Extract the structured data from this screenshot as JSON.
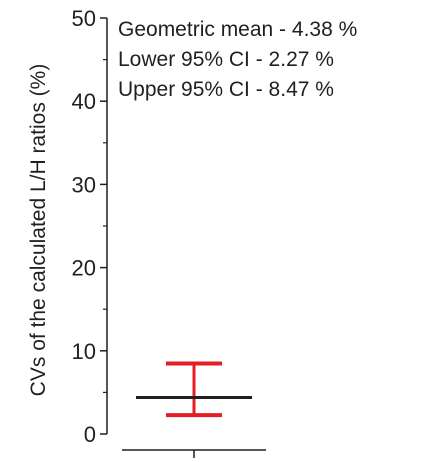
{
  "chart_data": {
    "type": "errorbar",
    "ylabel": "CVs of the calculated L/H ratios (%)",
    "ylim": [
      0,
      50
    ],
    "yticks": [
      0,
      10,
      20,
      30,
      40,
      50
    ],
    "yminor_step": 5,
    "grid": false,
    "legend": "none",
    "points": [
      {
        "center": 4.38,
        "lower": 2.27,
        "upper": 8.47
      }
    ],
    "annotations": [
      "Geometric mean - 4.38 %",
      "Lower 95% CI - 2.27 %",
      "Upper 95% CI - 8.47 %"
    ]
  },
  "colors": {
    "axis": "#231f20",
    "mean_line": "#231f20",
    "error_bar": "#e31e24",
    "text": "#231f20"
  }
}
